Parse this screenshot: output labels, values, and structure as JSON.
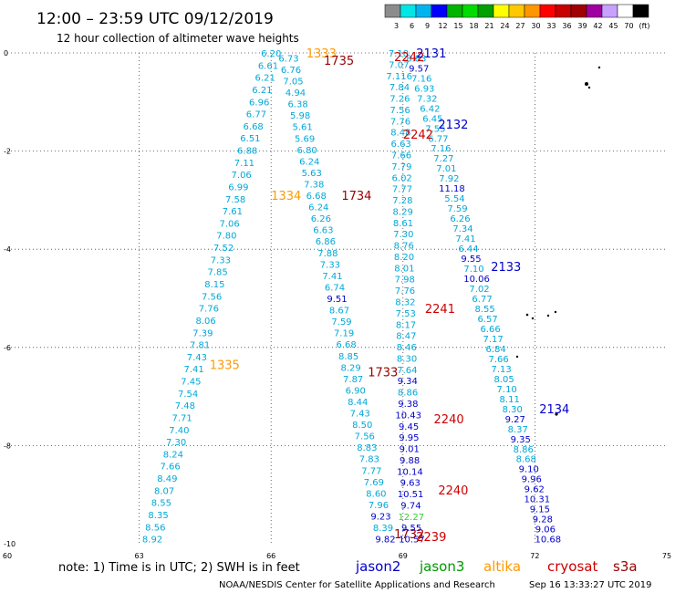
{
  "title": "12:00 – 23:59 UTC 09/12/2019",
  "subtitle": "12 hour collection of altimeter wave heights",
  "legend": {
    "colors": [
      "#8c8c8c",
      "#00e6e6",
      "#00b4f0",
      "#0000ff",
      "#00b400",
      "#00dc00",
      "#00a000",
      "#ffff00",
      "#ffc800",
      "#ff9600",
      "#ff0000",
      "#c80000",
      "#a00000",
      "#a000a0",
      "#c8a0ff",
      "#ffffff",
      "#000000"
    ],
    "labels": [
      "3",
      "6",
      "9",
      "12",
      "15",
      "18",
      "21",
      "24",
      "27",
      "30",
      "33",
      "36",
      "39",
      "42",
      "45",
      "70",
      "(ft)"
    ]
  },
  "note": "note:  1) Time is in UTC;  2) SWH is in feet",
  "satellites": [
    {
      "name": "jason2",
      "color": "#0000cc"
    },
    {
      "name": "jason3",
      "color": "#009900"
    },
    {
      "name": "altika",
      "color": "#ff9900"
    },
    {
      "name": "cryosat",
      "color": "#cc0000"
    },
    {
      "name": "s3a",
      "color": "#990000"
    }
  ],
  "footer_left": "NOAA/NESDIS Center for Satellite Applications and Research",
  "footer_right": "Sep 16 13:33:27 UTC 2019",
  "map": {
    "lon_range": [
      60,
      75
    ],
    "lat_range": [
      -10,
      0
    ],
    "x_ticks": [
      "60",
      "63",
      "66",
      "69",
      "72",
      "75"
    ],
    "y_ticks": [
      "0",
      "-2",
      "-4",
      "-6",
      "-8",
      "-10"
    ]
  },
  "tracks": [
    {
      "id": "t1335",
      "color": "#00a8d8",
      "top": [
        66,
        0
      ],
      "bottom": [
        63.3,
        -9.9
      ],
      "values": [
        "6.20",
        "6.61",
        "6.21",
        "6.21",
        "6.96",
        "6.77",
        "6.68",
        "6.51",
        "6.88",
        "7.11",
        "7.06",
        "6.99",
        "7.58",
        "7.61",
        "7.06",
        "7.80",
        "7.52",
        "7.33",
        "7.85",
        "8.15",
        "7.56",
        "7.76",
        "8.06",
        "7.39",
        "7.81",
        "7.43",
        "7.41",
        "7.45",
        "7.54",
        "7.48",
        "7.71",
        "7.40",
        "7.30",
        "8.24",
        "7.66",
        "8.49",
        "8.07",
        "8.55",
        "8.35",
        "8.56",
        "8.92"
      ]
    },
    {
      "id": "t1734",
      "color": "#00a8d8",
      "top": [
        66.4,
        -0.1
      ],
      "bottom": [
        68.6,
        -9.9
      ],
      "values": [
        "6.73",
        "6.76",
        "7.05",
        "4.94",
        "6.38",
        "5.98",
        "5.61",
        "5.69",
        "6.80",
        "6.24",
        "5.63",
        "7.38",
        "6.68",
        "6.24",
        "6.26",
        "6.63",
        "6.86",
        "7.88",
        "7.33",
        "7.41",
        "6.74",
        "9.51",
        "8.67",
        "7.59",
        "7.19",
        "6.68",
        "8.85",
        "8.29",
        "7.87",
        "6.90",
        "8.44",
        "7.43",
        "8.50",
        "7.56",
        "8.83",
        "7.83",
        "7.77",
        "7.69",
        "8.60",
        "7.96",
        "9.23",
        "8.39",
        "9.82"
      ]
    },
    {
      "id": "t2242",
      "color": "#00a8d8",
      "top": [
        68.9,
        0
      ],
      "bottom": [
        69.2,
        -9.9
      ],
      "values": [
        "7.18",
        "7.07",
        "7.116",
        "7.84",
        "7.26",
        "7.56",
        "7.76",
        "8.48",
        "6.63",
        "7.66",
        "7.79",
        "6.02",
        "7.77",
        "7.28",
        "8.29",
        "8.61",
        "7.30",
        "8.76",
        "8.20",
        "8.01",
        "7.98",
        "7.76",
        "8.32",
        "7.53",
        "8.17",
        "8.47",
        "8.46",
        "8.30",
        "7.64",
        "9.34",
        "8.86",
        "9.38",
        "10.43",
        "9.45",
        "9.95",
        "9.01",
        "9.88",
        "10.14",
        "9.63",
        "10.51",
        "9.74",
        "12.27",
        "9.55",
        "10.57"
      ]
    },
    {
      "id": "t2131",
      "color": "#00a8d8",
      "top": [
        69.3,
        -0.1
      ],
      "bottom": [
        72.3,
        -9.9
      ],
      "values": [
        "8.83",
        "9.57",
        "7.16",
        "6.93",
        "7.32",
        "6.42",
        "6.45",
        "7.55",
        "6.77",
        "7.16",
        "7.27",
        "7.01",
        "7.92",
        "11.18",
        "5.54",
        "7.59",
        "6.26",
        "7.34",
        "7.41",
        "6.44",
        "9.55",
        "7.10",
        "10.06",
        "7.02",
        "6.77",
        "8.55",
        "6.57",
        "6.66",
        "7.17",
        "6.84",
        "7.66",
        "7.13",
        "8.05",
        "7.10",
        "8.11",
        "8.30",
        "9.27",
        "8.37",
        "9.35",
        "8.86",
        "8.68",
        "9.10",
        "9.96",
        "9.62",
        "10.31",
        "9.15",
        "9.28",
        "9.06",
        "10.68"
      ]
    }
  ],
  "times": [
    {
      "text": "1333",
      "color": "#ff9900",
      "lon": 66.8,
      "lat": 0
    },
    {
      "text": "1735",
      "color": "#990000",
      "lon": 67.2,
      "lat": -0.15
    },
    {
      "text": "2242",
      "color": "#cc0000",
      "lon": 68.8,
      "lat": -0.07
    },
    {
      "text": "2131",
      "color": "#0000cc",
      "lon": 69.3,
      "lat": 0
    },
    {
      "text": "2132",
      "color": "#0000cc",
      "lon": 69.8,
      "lat": -1.45
    },
    {
      "text": "2242",
      "color": "#cc0000",
      "lon": 69.0,
      "lat": -1.65
    },
    {
      "text": "1334",
      "color": "#ff9900",
      "lon": 66.0,
      "lat": -2.9
    },
    {
      "text": "1734",
      "color": "#990000",
      "lon": 67.6,
      "lat": -2.9
    },
    {
      "text": "2133",
      "color": "#0000cc",
      "lon": 71.0,
      "lat": -4.35
    },
    {
      "text": "2241",
      "color": "#cc0000",
      "lon": 69.5,
      "lat": -5.2
    },
    {
      "text": "1335",
      "color": "#ff9900",
      "lon": 64.6,
      "lat": -6.35
    },
    {
      "text": "1733",
      "color": "#990000",
      "lon": 68.2,
      "lat": -6.5
    },
    {
      "text": "2240",
      "color": "#cc0000",
      "lon": 69.7,
      "lat": -7.45
    },
    {
      "text": "2134",
      "color": "#0000cc",
      "lon": 72.1,
      "lat": -7.25
    },
    {
      "text": "2240",
      "color": "#cc0000",
      "lon": 69.8,
      "lat": -8.9
    },
    {
      "text": "1732",
      "color": "#990000",
      "lon": 68.8,
      "lat": -9.8
    },
    {
      "text": "2239",
      "color": "#cc0000",
      "lon": 69.3,
      "lat": -9.85
    }
  ]
}
